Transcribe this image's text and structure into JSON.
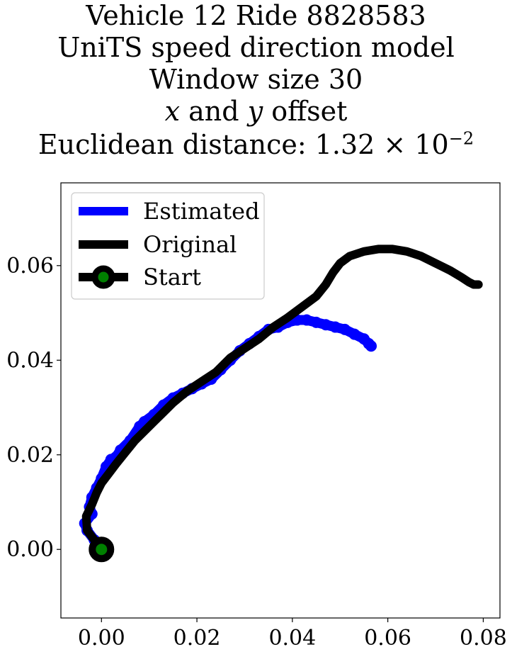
{
  "chart_data": {
    "type": "line",
    "title": {
      "line1": "Vehicle 12 Ride 8828583",
      "line2": "UniTS speed direction model",
      "line3": "Window size 30",
      "line4_x": "x",
      "line4_mid": " and ",
      "line4_y": "y",
      "line4_end": " offset",
      "line5_prefix": "Euclidean distance: 1.32 × 10",
      "line5_exponent": "−2"
    },
    "xlim": [
      -0.0085,
      0.0835
    ],
    "ylim": [
      -0.0145,
      0.0775
    ],
    "xticks": [
      0.0,
      0.02,
      0.04,
      0.06,
      0.08
    ],
    "xtick_labels": [
      "0.00",
      "0.02",
      "0.04",
      "0.06",
      "0.08"
    ],
    "yticks": [
      0.0,
      0.02,
      0.04,
      0.06
    ],
    "ytick_labels": [
      "0.00",
      "0.02",
      "0.04",
      "0.06"
    ],
    "grid": false,
    "legend_position": "top-left",
    "series": [
      {
        "name": "Estimated",
        "color": "#0000ff",
        "style": "markers",
        "x": [
          0.0,
          -0.0015,
          -0.003,
          -0.0035,
          -0.002,
          -0.0025,
          -0.002,
          -0.001,
          0.0,
          0.001,
          0.002,
          0.003,
          0.004,
          0.006,
          0.008,
          0.009,
          0.011,
          0.013,
          0.015,
          0.017,
          0.019,
          0.021,
          0.023,
          0.025,
          0.027,
          0.029,
          0.031,
          0.033,
          0.035,
          0.037,
          0.039,
          0.041,
          0.043,
          0.045,
          0.047,
          0.049,
          0.051,
          0.053,
          0.055,
          0.056,
          0.0565
        ],
        "y": [
          0.0,
          0.002,
          0.004,
          0.0055,
          0.0075,
          0.009,
          0.011,
          0.013,
          0.015,
          0.0175,
          0.019,
          0.0195,
          0.021,
          0.023,
          0.026,
          0.027,
          0.0285,
          0.0305,
          0.032,
          0.033,
          0.034,
          0.035,
          0.036,
          0.038,
          0.04,
          0.042,
          0.0435,
          0.045,
          0.0465,
          0.047,
          0.048,
          0.0485,
          0.0485,
          0.048,
          0.0475,
          0.047,
          0.0465,
          0.0455,
          0.0445,
          0.0435,
          0.043
        ]
      },
      {
        "name": "Original",
        "color": "#000000",
        "style": "line",
        "x": [
          0.0,
          -0.0015,
          -0.003,
          -0.0032,
          -0.002,
          -0.001,
          0.0,
          0.0015,
          0.003,
          0.005,
          0.007,
          0.009,
          0.011,
          0.013,
          0.015,
          0.018,
          0.021,
          0.024,
          0.027,
          0.03,
          0.033,
          0.036,
          0.039,
          0.041,
          0.043,
          0.045,
          0.047,
          0.0485,
          0.05,
          0.052,
          0.055,
          0.058,
          0.061,
          0.064,
          0.067,
          0.07,
          0.073,
          0.0755,
          0.077,
          0.078,
          0.079
        ],
        "y": [
          0.0,
          0.002,
          0.004,
          0.007,
          0.0095,
          0.012,
          0.014,
          0.016,
          0.018,
          0.0205,
          0.023,
          0.025,
          0.027,
          0.029,
          0.031,
          0.0335,
          0.0355,
          0.0375,
          0.0405,
          0.0425,
          0.0445,
          0.047,
          0.049,
          0.0505,
          0.052,
          0.0535,
          0.056,
          0.0585,
          0.0605,
          0.062,
          0.063,
          0.0635,
          0.0635,
          0.063,
          0.062,
          0.0605,
          0.059,
          0.0575,
          0.0565,
          0.056,
          0.056
        ]
      },
      {
        "name": "Start",
        "color": "#008000",
        "edge_color": "#000000",
        "style": "marker",
        "x": [
          0.0
        ],
        "y": [
          0.0
        ]
      }
    ]
  }
}
